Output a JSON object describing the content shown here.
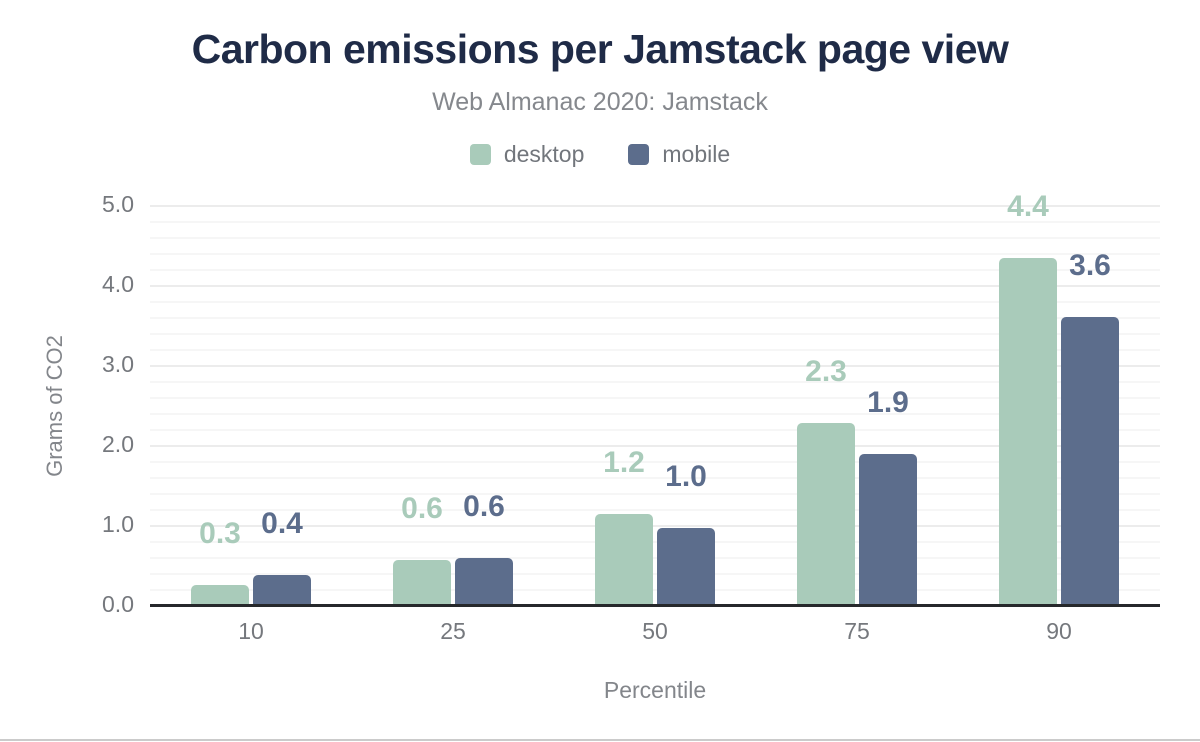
{
  "header": {
    "title": "Carbon emissions per Jamstack page view",
    "subtitle": "Web Almanac 2020: Jamstack",
    "title_color": "#1f2b47",
    "subtitle_color": "#85888d"
  },
  "legend": {
    "items": [
      {
        "label": "desktop",
        "color": "#a9cbba"
      },
      {
        "label": "mobile",
        "color": "#5c6d8c"
      }
    ]
  },
  "axes": {
    "y_title": "Grams of CO2",
    "x_title": "Percentile"
  },
  "chart_data": {
    "type": "bar",
    "title": "Carbon emissions per Jamstack page view",
    "subtitle": "Web Almanac 2020: Jamstack",
    "xlabel": "Percentile",
    "ylabel": "Grams of CO2",
    "categories": [
      "10",
      "25",
      "50",
      "75",
      "90"
    ],
    "series": [
      {
        "name": "desktop",
        "color": "#a9cbba",
        "values": [
          0.26,
          0.57,
          1.15,
          2.29,
          4.35
        ],
        "labels": [
          "0.3",
          "0.6",
          "1.2",
          "2.3",
          "4.4"
        ]
      },
      {
        "name": "mobile",
        "color": "#5c6d8c",
        "values": [
          0.39,
          0.6,
          0.97,
          1.9,
          3.61
        ],
        "labels": [
          "0.4",
          "0.6",
          "1.0",
          "1.9",
          "3.6"
        ]
      }
    ],
    "ylim": [
      0,
      5
    ],
    "y_ticks": [
      "0.0",
      "1.0",
      "2.0",
      "3.0",
      "4.0",
      "5.0"
    ],
    "grid": {
      "minor_step": 0.2,
      "major_step": 1.0,
      "visible": true
    },
    "legend_position": "top",
    "axis_line_color": "#26282b"
  }
}
